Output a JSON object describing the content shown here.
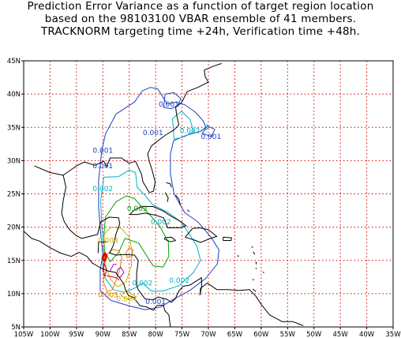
{
  "title": {
    "line1": "Prediction Error Variance as a function of target region location",
    "line2": "based on the 98103100 VBAR ensemble of 41 members.",
    "line3": "TRACKNORM targeting time +24h, Verification time +48h."
  },
  "axes": {
    "lon_min": -105,
    "lon_max": -35,
    "lat_min": 5,
    "lat_max": 45,
    "lon_ticks": [
      {
        "v": -105,
        "label": "105W"
      },
      {
        "v": -100,
        "label": "100W"
      },
      {
        "v": -95,
        "label": "95W"
      },
      {
        "v": -90,
        "label": "90W"
      },
      {
        "v": -85,
        "label": "85W"
      },
      {
        "v": -80,
        "label": "80W"
      },
      {
        "v": -75,
        "label": "75W"
      },
      {
        "v": -70,
        "label": "70W"
      },
      {
        "v": -65,
        "label": "65W"
      },
      {
        "v": -60,
        "label": "60W"
      },
      {
        "v": -55,
        "label": "55W"
      },
      {
        "v": -50,
        "label": "50W"
      },
      {
        "v": -45,
        "label": "45W"
      },
      {
        "v": -40,
        "label": "40W"
      },
      {
        "v": -35,
        "label": "35W"
      }
    ],
    "lat_ticks": [
      {
        "v": 5,
        "label": "5N"
      },
      {
        "v": 10,
        "label": "10N"
      },
      {
        "v": 15,
        "label": "15N"
      },
      {
        "v": 20,
        "label": "20N"
      },
      {
        "v": 25,
        "label": "25N"
      },
      {
        "v": 30,
        "label": "30N"
      },
      {
        "v": 35,
        "label": "35N"
      },
      {
        "v": 40,
        "label": "40N"
      },
      {
        "v": 45,
        "label": "45N"
      }
    ],
    "grid": "dotted",
    "grid_color": "#d40000"
  },
  "colors": {
    "coast": "#000000",
    "level_0001": "#1f3fbf",
    "level_0002": "#00b4c8",
    "level_0003": "#00a000",
    "level_0004": "#c8b400",
    "level_0005": "#e08000",
    "level_high": "#e00000",
    "level_mid": "#a000c0"
  },
  "contour_labels": [
    {
      "text": "0.001",
      "lon": -77.5,
      "lat": 38.5,
      "color": "#1f3fbf"
    },
    {
      "text": "0.001",
      "lon": -80.5,
      "lat": 34.2,
      "color": "#1f3fbf"
    },
    {
      "text": "0.002",
      "lon": -73.5,
      "lat": 34.5,
      "color": "#00b4c8"
    },
    {
      "text": "0.001",
      "lon": -69.5,
      "lat": 33.6,
      "color": "#1f3fbf"
    },
    {
      "text": "0.001",
      "lon": -90.0,
      "lat": 31.5,
      "color": "#1f3fbf"
    },
    {
      "text": "0.001",
      "lon": -90.0,
      "lat": 29.2,
      "color": "#1f3fbf"
    },
    {
      "text": "0.002",
      "lon": -90.0,
      "lat": 25.8,
      "color": "#00b4c8"
    },
    {
      "text": "0.003",
      "lon": -83.5,
      "lat": 22.8,
      "color": "#00a000"
    },
    {
      "text": "0.002",
      "lon": -79.0,
      "lat": 20.8,
      "color": "#00b4c8"
    },
    {
      "text": "0.004",
      "lon": -89.0,
      "lat": 18.0,
      "color": "#c8b400"
    },
    {
      "text": "0.002",
      "lon": -82.5,
      "lat": 11.6,
      "color": "#00b4c8"
    },
    {
      "text": "0.002",
      "lon": -75.5,
      "lat": 12.0,
      "color": "#00b4c8"
    },
    {
      "text": "0.005",
      "lon": -89.0,
      "lat": 9.8,
      "color": "#e08000"
    },
    {
      "text": "0.004",
      "lon": -85.5,
      "lat": 9.2,
      "color": "#c8b400"
    },
    {
      "text": "0.001",
      "lon": -80.0,
      "lat": 8.8,
      "color": "#1f3fbf"
    }
  ]
}
